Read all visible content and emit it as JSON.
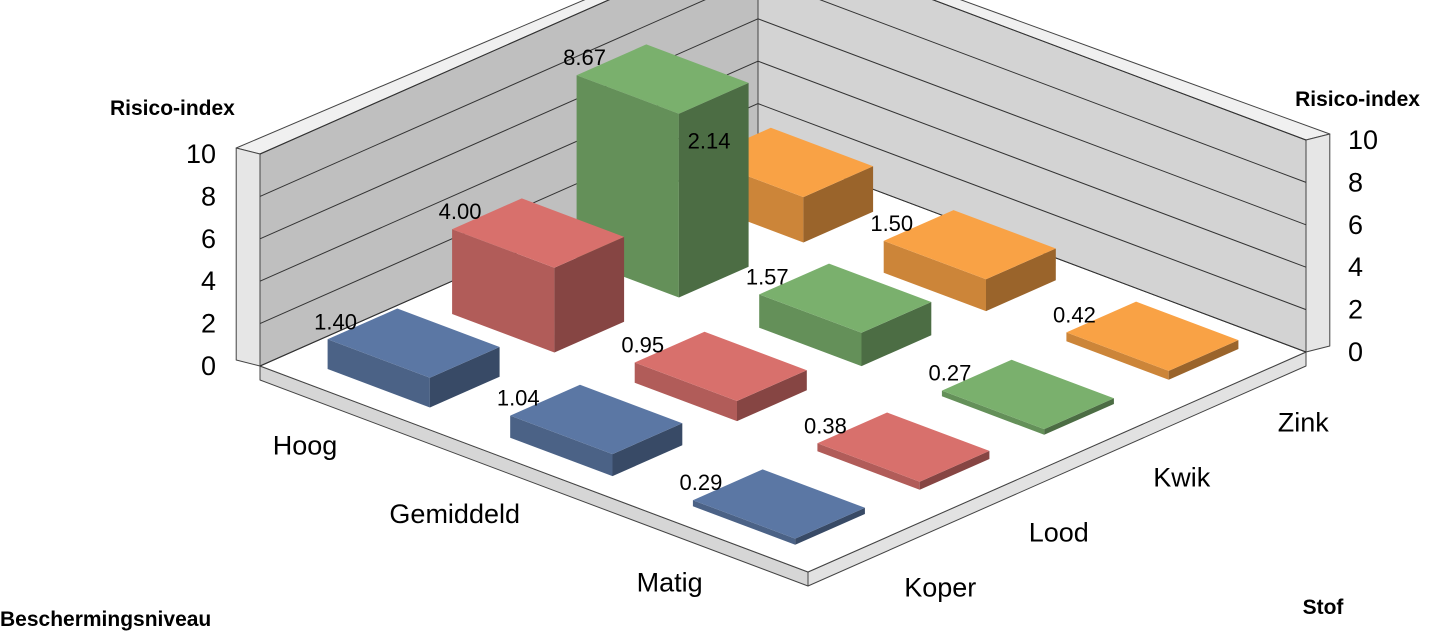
{
  "chart_data": {
    "type": "bar3d",
    "axes": {
      "z_label_left": "Risico-index",
      "z_label_right": "Risico-index",
      "x_title": "Beschermingsniveau",
      "y_title": "Stof",
      "z_ticks": [
        "0",
        "2",
        "4",
        "6",
        "8",
        "10"
      ],
      "zlim": [
        0,
        10
      ]
    },
    "categories": [
      "Hoog",
      "Gemiddeld",
      "Matig"
    ],
    "substances": [
      "Koper",
      "Lood",
      "Kwik",
      "Zink"
    ],
    "series": [
      {
        "name": "Koper",
        "color": "#5b77a4",
        "values": [
          1.4,
          1.04,
          0.29
        ],
        "labels": [
          "1.40",
          "1.04",
          "0.29"
        ]
      },
      {
        "name": "Lood",
        "color": "#d8706c",
        "values": [
          4.0,
          0.95,
          0.38
        ],
        "labels": [
          "4.00",
          "0.95",
          "0.38"
        ]
      },
      {
        "name": "Kwik",
        "color": "#7ab06d",
        "values": [
          8.67,
          1.57,
          0.27
        ],
        "labels": [
          "8.67",
          "1.57",
          "0.27"
        ]
      },
      {
        "name": "Zink",
        "color": "#f9a245",
        "values": [
          2.14,
          1.5,
          0.42
        ],
        "labels": [
          "2.14",
          "1.50",
          "0.42"
        ]
      }
    ],
    "grid": true
  }
}
